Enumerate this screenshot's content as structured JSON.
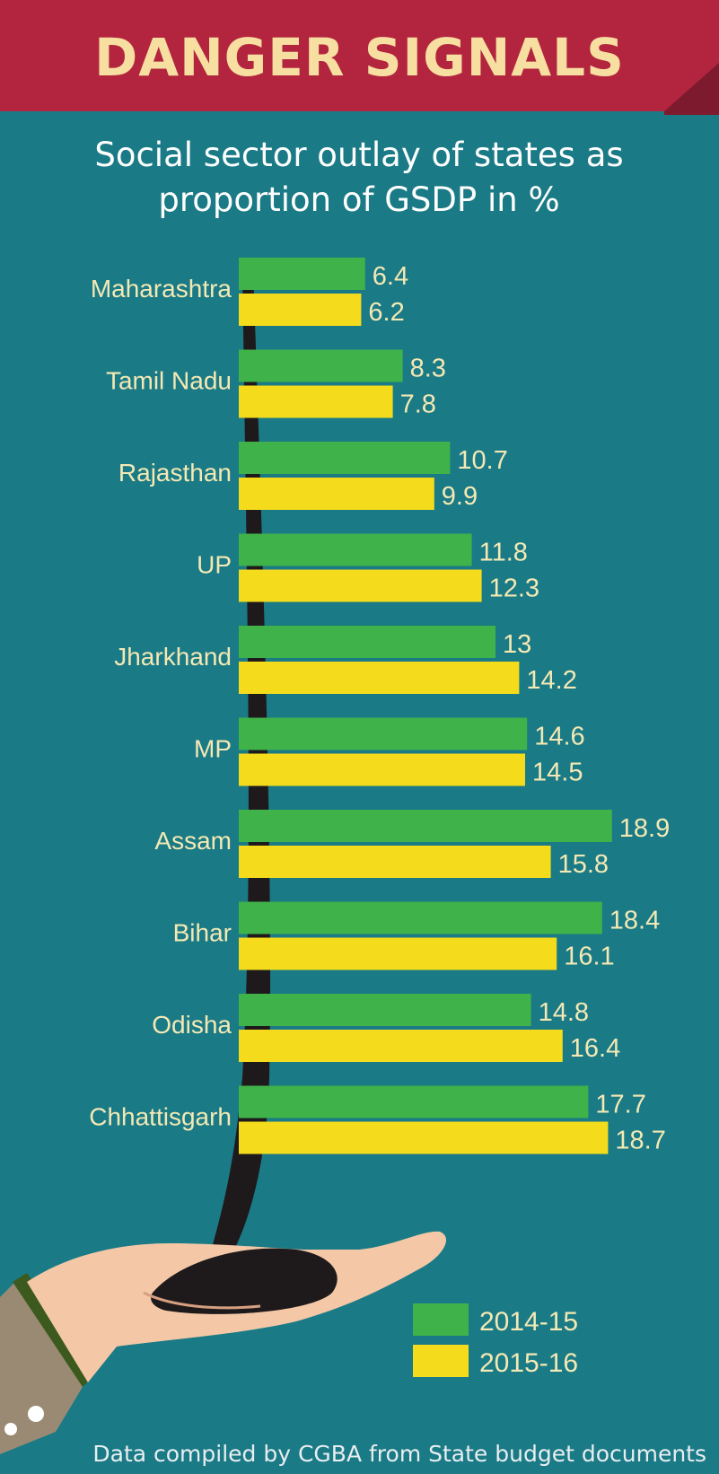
{
  "colors": {
    "background": "#1a7a86",
    "banner": "#b3243f",
    "title": "#f6dfa0",
    "label": "#f4e9b4",
    "series_2014": "#3fb24a",
    "series_2015": "#f4dc1c",
    "stem": "#1e1a1c"
  },
  "header": {
    "title": "DANGER SIGNALS",
    "subtitle_line1": "Social sector outlay of states as",
    "subtitle_line2": "proportion of GSDP in %"
  },
  "footer": {
    "source": "Data compiled by CGBA from State budget documents"
  },
  "icons": [
    "hand-icon",
    "sleeve-icon",
    "oil-drip-icon"
  ],
  "chart_data": {
    "type": "bar",
    "orientation": "horizontal",
    "title": "Social sector outlay of states as proportion of GSDP in %",
    "xlabel": "",
    "ylabel": "",
    "grid": false,
    "legend_position": "bottom-right",
    "categories": [
      "Maharashtra",
      "Tamil Nadu",
      "Rajasthan",
      "UP",
      "Jharkhand",
      "MP",
      "Assam",
      "Bihar",
      "Odisha",
      "Chhattisgarh"
    ],
    "series": [
      {
        "name": "2014-15",
        "color": "#3fb24a",
        "values": [
          6.4,
          8.3,
          10.7,
          11.8,
          13,
          14.6,
          18.9,
          18.4,
          14.8,
          17.7
        ],
        "labels": [
          "6.4",
          "8.3",
          "10.7",
          "11.8",
          "13",
          "14.6",
          "18.9",
          "18.4",
          "14.8",
          "17.7"
        ]
      },
      {
        "name": "2015-16",
        "color": "#f4dc1c",
        "values": [
          6.2,
          7.8,
          9.9,
          12.3,
          14.2,
          14.5,
          15.8,
          16.1,
          16.4,
          18.7
        ],
        "labels": [
          "6.2",
          "7.8",
          "9.9",
          "12.3",
          "14.2",
          "14.5",
          "15.8",
          "16.1",
          "16.4",
          "18.7"
        ]
      }
    ]
  }
}
